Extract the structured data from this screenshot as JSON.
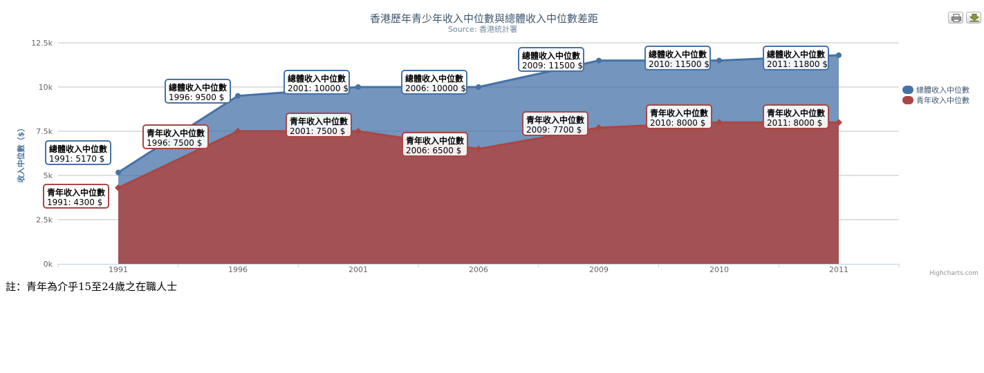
{
  "chart_data": {
    "type": "area",
    "title": "香港歷年青少年收入中位數與總體收入中位數差距",
    "subtitle": "Source: 香港統計署",
    "ylabel": "收入中位數（$）",
    "categories": [
      "1991",
      "1996",
      "2001",
      "2006",
      "2009",
      "2010",
      "2011"
    ],
    "y_ticks": [
      "0k",
      "2.5k",
      "5k",
      "7.5k",
      "10k",
      "12.5k"
    ],
    "ylim": [
      0,
      12500
    ],
    "grid": true,
    "legend_position": "right",
    "series": [
      {
        "name": "總體收入中位數",
        "values": [
          5170,
          9500,
          10000,
          10000,
          11500,
          11500,
          11800
        ],
        "color": "#4572a7"
      },
      {
        "name": "青年收入中位數",
        "values": [
          4300,
          7500,
          7500,
          6500,
          7700,
          8000,
          8000
        ],
        "color": "#aa4643"
      }
    ],
    "data_labels": {
      "overall": [
        {
          "title": "總體收入中位數",
          "text": "1991: 5170 $"
        },
        {
          "title": "總體收入中位數",
          "text": "1996: 9500 $"
        },
        {
          "title": "總體收入中位數",
          "text": "2001: 10000 $"
        },
        {
          "title": "總體收入中位數",
          "text": "2006: 10000 $"
        },
        {
          "title": "總體收入中位數",
          "text": "2009: 11500 $"
        },
        {
          "title": "總體收入中位數",
          "text": "2010: 11500 $"
        },
        {
          "title": "總體收入中位數",
          "text": "2011: 11800 $"
        }
      ],
      "youth": [
        {
          "title": "青年收入中位數",
          "text": "1991: 4300 $"
        },
        {
          "title": "青年收入中位數",
          "text": "1996: 7500 $"
        },
        {
          "title": "青年收入中位數",
          "text": "2001: 7500 $"
        },
        {
          "title": "青年收入中位數",
          "text": "2006: 6500 $"
        },
        {
          "title": "青年收入中位數",
          "text": "2009: 7700 $"
        },
        {
          "title": "青年收入中位數",
          "text": "2010: 8000 $"
        },
        {
          "title": "青年收入中位數",
          "text": "2011: 8000 $"
        }
      ]
    }
  },
  "credits": "Highcharts.com",
  "footnote": "註：青年為介乎15至24歲之在職人士",
  "colors": {
    "title": "#3e576f",
    "subtitle": "#6d869f",
    "axis_text": "#666666",
    "grid": "#c0c0c0"
  },
  "toolbar": {
    "print_icon": "printer-icon",
    "download_icon": "download-icon"
  }
}
